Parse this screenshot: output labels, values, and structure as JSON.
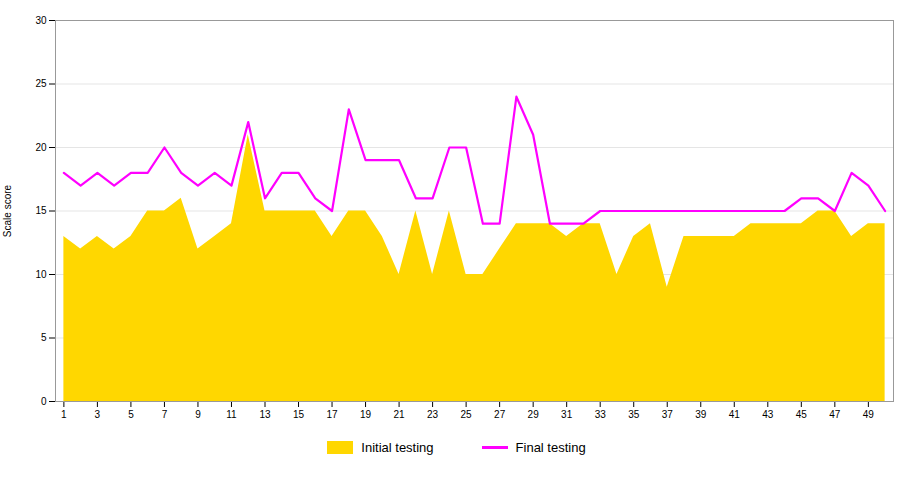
{
  "chart_data": {
    "type": "line",
    "ylabel": "Scale score",
    "x": [
      1,
      2,
      3,
      4,
      5,
      6,
      7,
      8,
      9,
      10,
      11,
      12,
      13,
      14,
      15,
      16,
      17,
      18,
      19,
      20,
      21,
      22,
      23,
      24,
      25,
      26,
      27,
      28,
      29,
      30,
      31,
      32,
      33,
      34,
      35,
      36,
      37,
      38,
      39,
      40,
      41,
      42,
      43,
      44,
      45,
      46,
      47,
      48,
      49,
      50
    ],
    "series": [
      {
        "name": "Initial testing",
        "type": "area",
        "color": "#FFD700",
        "values": [
          13,
          12,
          13,
          12,
          13,
          15,
          15,
          16,
          12,
          13,
          14,
          21,
          15,
          15,
          15,
          15,
          13,
          15,
          15,
          13,
          10,
          15,
          10,
          15,
          10,
          10,
          12,
          14,
          14,
          14,
          13,
          14,
          14,
          10,
          13,
          14,
          9,
          13,
          13,
          13,
          13,
          14,
          14,
          14,
          14,
          15,
          15,
          13,
          14,
          14
        ]
      },
      {
        "name": "Final testing",
        "type": "line",
        "color": "#FF00FF",
        "values": [
          18,
          17,
          18,
          17,
          18,
          18,
          20,
          18,
          17,
          18,
          17,
          22,
          16,
          18,
          18,
          16,
          15,
          23,
          19,
          19,
          19,
          16,
          16,
          20,
          20,
          14,
          14,
          24,
          21,
          14,
          14,
          14,
          15,
          15,
          15,
          15,
          15,
          15,
          15,
          15,
          15,
          15,
          15,
          15,
          16,
          16,
          15,
          18,
          17,
          15
        ]
      }
    ],
    "xlim": [
      0.5,
      50.5
    ],
    "xticks": [
      1,
      3,
      5,
      7,
      9,
      11,
      13,
      15,
      17,
      19,
      21,
      23,
      25,
      27,
      29,
      31,
      33,
      35,
      37,
      39,
      41,
      43,
      45,
      47,
      49
    ],
    "ylim": [
      0,
      30
    ],
    "yticks": [
      0,
      5,
      10,
      15,
      20,
      25,
      30
    ],
    "grid": true,
    "legend": "bottom"
  }
}
